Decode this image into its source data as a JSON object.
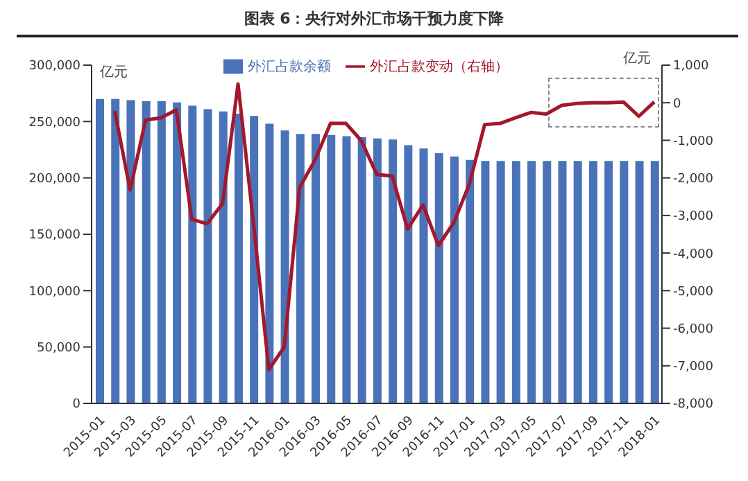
{
  "chart_data": {
    "type": "bar",
    "title": "图表 6：央行对外汇市场干预力度下降",
    "ylabel": "亿元",
    "y2label": "亿元",
    "categories": [
      "2015-01",
      null,
      "2015-03",
      null,
      "2015-05",
      null,
      "2015-07",
      null,
      "2015-09",
      null,
      "2015-11",
      null,
      "2016-01",
      null,
      "2016-03",
      null,
      "2016-05",
      null,
      "2016-07",
      null,
      "2016-09",
      null,
      "2016-11",
      null,
      "2017-01",
      null,
      "2017-03",
      null,
      "2017-05",
      null,
      "2017-07",
      null,
      "2017-09",
      null,
      "2017-11",
      null,
      "2018-01"
    ],
    "series": [
      {
        "name": "外汇占款余额",
        "color": "#4a72b8",
        "values": [
          270000,
          270000,
          269000,
          268000,
          268000,
          267000,
          264000,
          261000,
          259000,
          257000,
          255000,
          248000,
          242000,
          239000,
          239000,
          238000,
          237000,
          236000,
          235000,
          234000,
          229000,
          226000,
          222000,
          219000,
          216000,
          215000,
          215000,
          215000,
          215000,
          215000,
          215000,
          215000,
          215000,
          215000,
          215000,
          215000,
          215000
        ]
      },
      {
        "name": "外汇占款变动（右轴）",
        "type": "line",
        "axis": "y2",
        "color": "#a3182c",
        "values": [
          null,
          -220,
          -2320,
          -460,
          -400,
          -190,
          -3100,
          -3220,
          -2680,
          500,
          -3200,
          -7100,
          -6500,
          -2250,
          -1520,
          -550,
          -550,
          -1010,
          -1910,
          -1950,
          -3360,
          -2720,
          -3800,
          -3190,
          -2170,
          -580,
          -550,
          -400,
          -260,
          -300,
          -70,
          -20,
          0,
          0,
          20,
          -360,
          20
        ]
      }
    ],
    "ylim": [
      0,
      300000
    ],
    "yticks": [
      0,
      {
        "value": 50000,
        "label": "50,000"
      },
      {
        "value": 100000,
        "label": "100,000"
      },
      {
        "value": 150000,
        "label": "150,000"
      },
      {
        "value": 200000,
        "label": "200,000"
      },
      {
        "value": 250000,
        "label": "250,000"
      },
      {
        "value": 300000,
        "label": "300,000"
      }
    ],
    "y2lim": [
      -8000,
      1000
    ],
    "y2ticks": [
      {
        "value": -8000,
        "label": "-8,000"
      },
      {
        "value": -7000,
        "label": "-7,000"
      },
      {
        "value": -6000,
        "label": "-6,000"
      },
      {
        "value": -5000,
        "label": "-5,000"
      },
      {
        "value": -4000,
        "label": "-4,000"
      },
      {
        "value": -3000,
        "label": "-3,000"
      },
      {
        "value": -2000,
        "label": "-2,000"
      },
      {
        "value": -1000,
        "label": "-1,000"
      },
      0,
      {
        "value": 1000,
        "label": "1,000"
      }
    ],
    "legend": "top",
    "grid": false,
    "marker": "none",
    "line_style": "solid"
  }
}
